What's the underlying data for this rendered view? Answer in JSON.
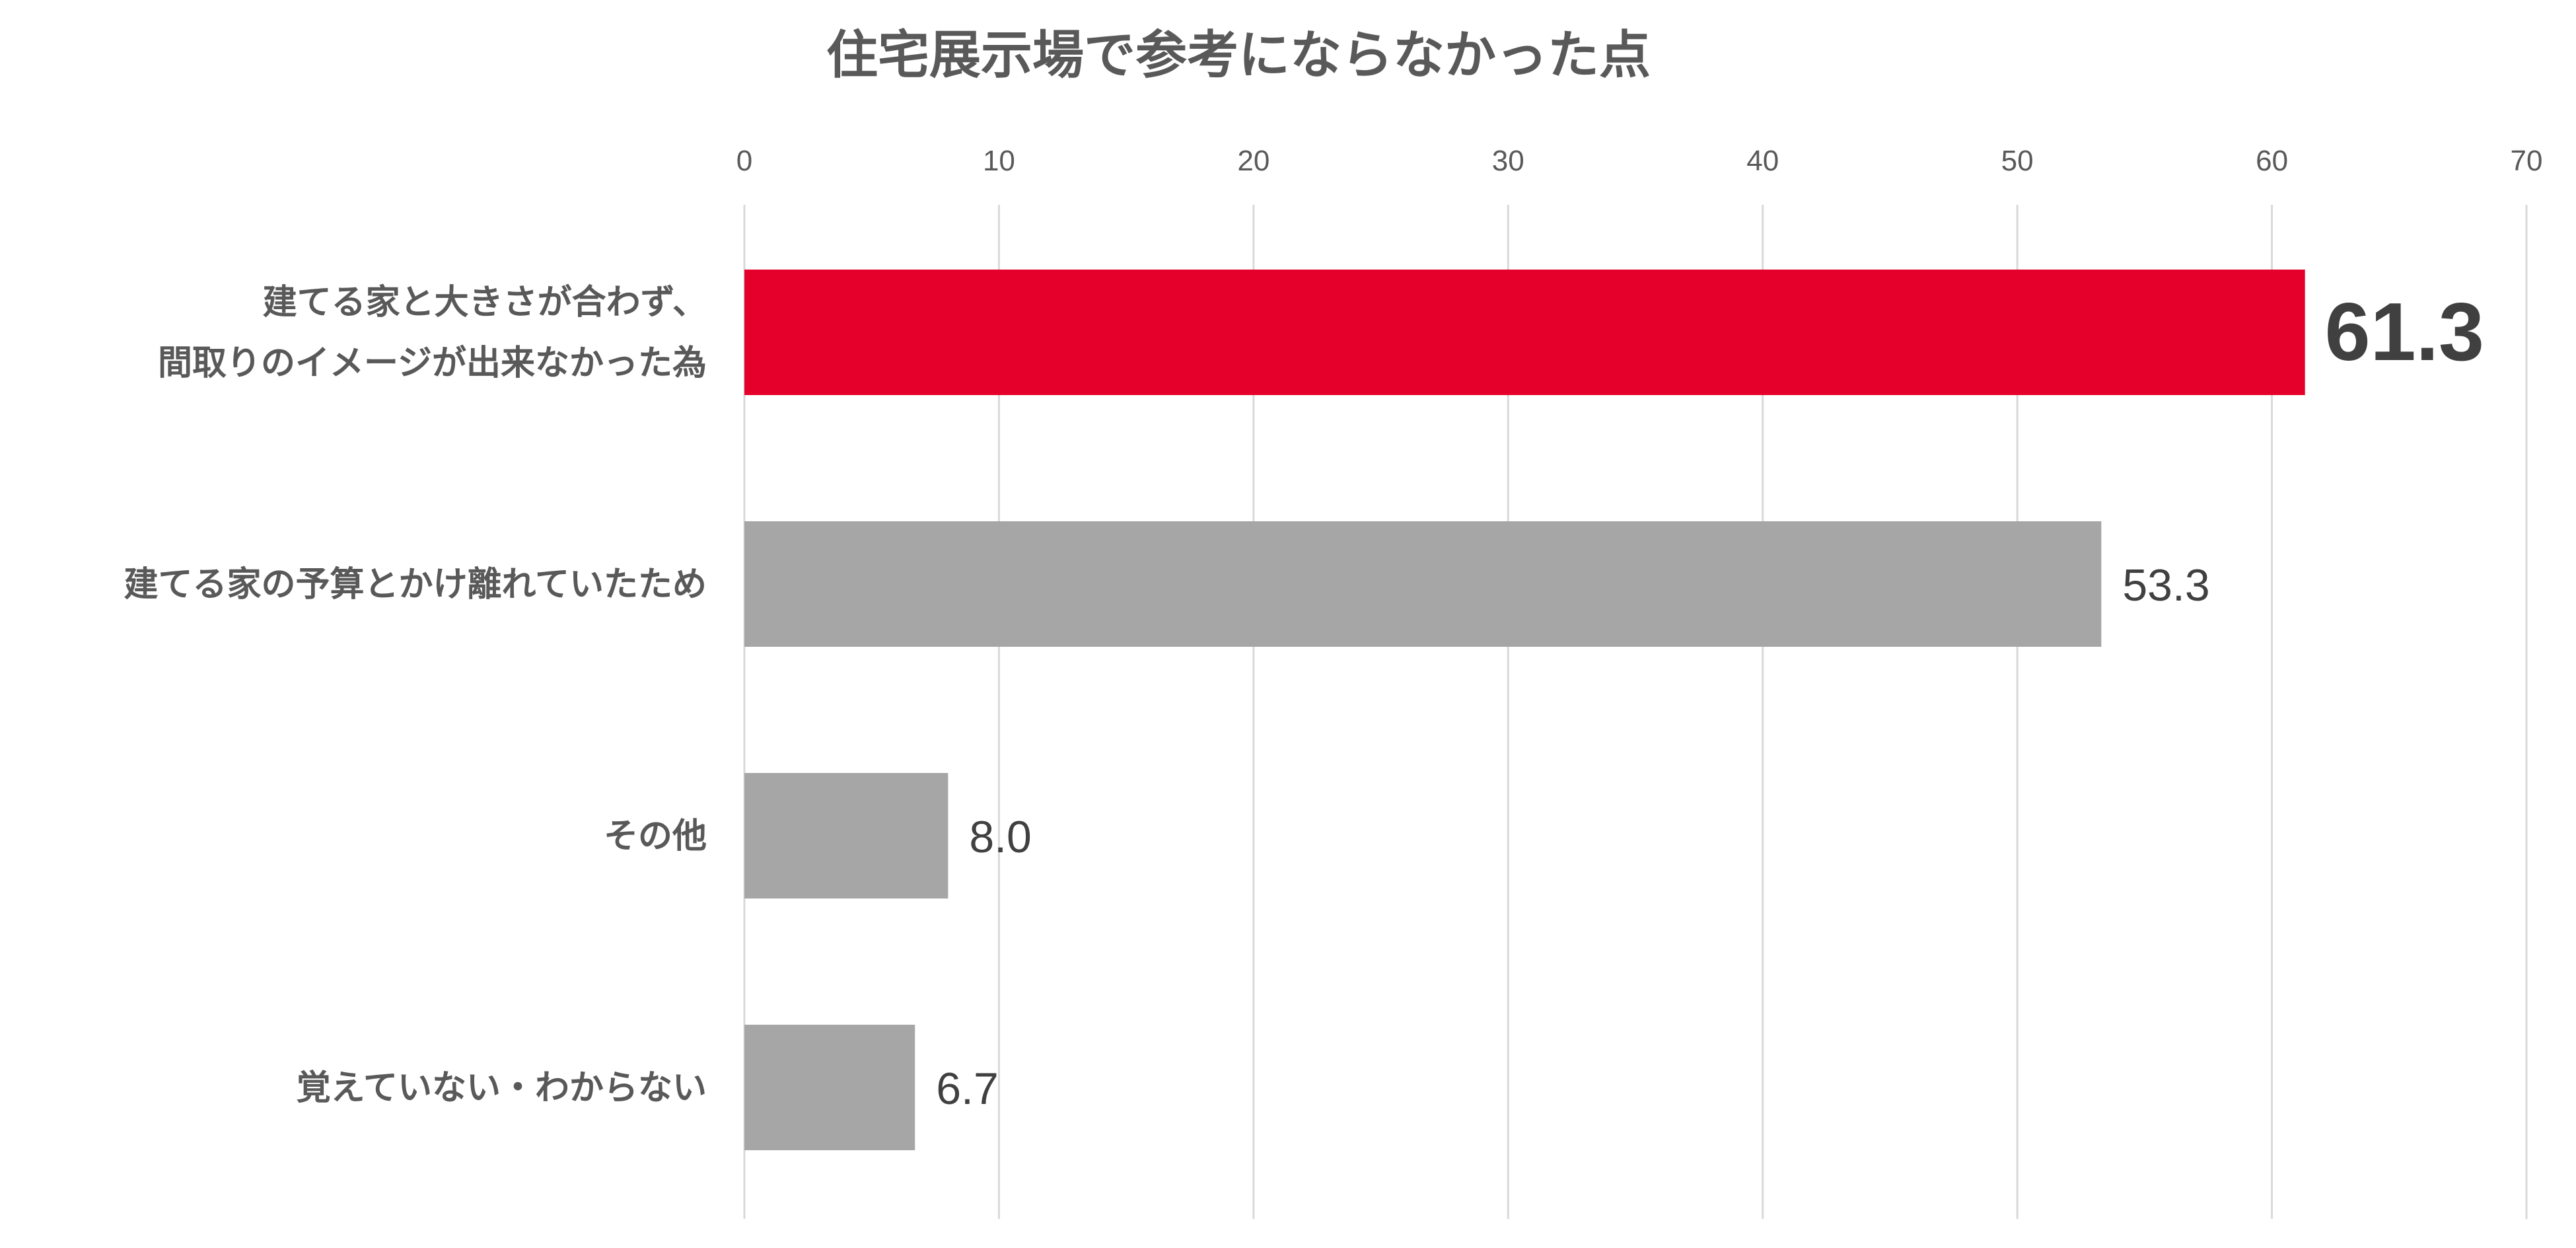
{
  "chart_data": {
    "type": "bar",
    "orientation": "horizontal",
    "title": "住宅展示場で参考にならなかった点",
    "xlabel": "",
    "ylabel": "",
    "xlim": [
      0,
      70
    ],
    "ticks": [
      "0",
      "10",
      "20",
      "30",
      "40",
      "50",
      "60",
      "70"
    ],
    "tick_values": [
      0,
      10,
      20,
      30,
      40,
      50,
      60,
      70
    ],
    "axis_position": "top",
    "grid": true,
    "legend": "none",
    "categories": [
      [
        "建てる家と大きさが合わず、",
        "間取りのイメージが出来なかった為"
      ],
      [
        "建てる家の予算とかけ離れていたため"
      ],
      [
        "その他"
      ],
      [
        "覚えていない・わからない"
      ]
    ],
    "values": [
      61.3,
      53.3,
      8.0,
      6.7
    ],
    "value_labels": [
      "61.3",
      "53.3",
      "8.0",
      "6.7"
    ],
    "highlight_index": 0,
    "colors": {
      "highlight": "#e4002b",
      "default": "#a6a6a6",
      "grid": "#d9d9d9",
      "text": "#595959",
      "value_text": "#404040"
    }
  }
}
